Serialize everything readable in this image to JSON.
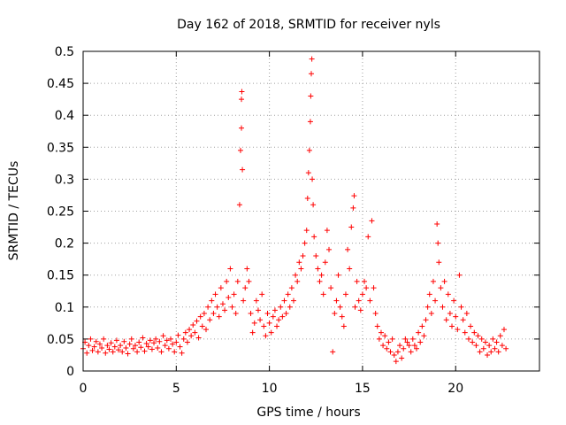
{
  "chart_data": {
    "type": "scatter",
    "title": "Day 162 of 2018, SRMTID for receiver nyls",
    "xlabel": "GPS time / hours",
    "ylabel": "SRMTID / TECUs",
    "xlim": [
      0,
      24.5
    ],
    "ylim": [
      0,
      0.5
    ],
    "x_ticks": [
      0,
      5,
      10,
      15,
      20
    ],
    "y_ticks": [
      0,
      0.05,
      0.1,
      0.15,
      0.2,
      0.25,
      0.3,
      0.35,
      0.4,
      0.45,
      0.5
    ],
    "x_tick_labels": [
      "0",
      "5",
      "10",
      "15",
      "20"
    ],
    "y_tick_labels": [
      "0",
      "0.05",
      "0.1",
      "0.15",
      "0.2",
      "0.25",
      "0.3",
      "0.35",
      "0.4",
      "0.45",
      "0.5"
    ],
    "grid": true,
    "marker": "+",
    "series": [
      {
        "name": "SRMTID",
        "color": "#ff0000",
        "points": [
          [
            0.0,
            0.035
          ],
          [
            0.1,
            0.045
          ],
          [
            0.2,
            0.028
          ],
          [
            0.3,
            0.04
          ],
          [
            0.4,
            0.05
          ],
          [
            0.5,
            0.032
          ],
          [
            0.6,
            0.038
          ],
          [
            0.7,
            0.046
          ],
          [
            0.8,
            0.03
          ],
          [
            0.9,
            0.042
          ],
          [
            1.0,
            0.036
          ],
          [
            1.1,
            0.05
          ],
          [
            1.2,
            0.028
          ],
          [
            1.3,
            0.04
          ],
          [
            1.4,
            0.034
          ],
          [
            1.5,
            0.044
          ],
          [
            1.6,
            0.03
          ],
          [
            1.7,
            0.038
          ],
          [
            1.8,
            0.048
          ],
          [
            1.9,
            0.033
          ],
          [
            2.0,
            0.04
          ],
          [
            2.1,
            0.03
          ],
          [
            2.2,
            0.046
          ],
          [
            2.3,
            0.036
          ],
          [
            2.4,
            0.027
          ],
          [
            2.5,
            0.042
          ],
          [
            2.6,
            0.05
          ],
          [
            2.7,
            0.035
          ],
          [
            2.8,
            0.04
          ],
          [
            2.9,
            0.03
          ],
          [
            3.0,
            0.045
          ],
          [
            3.1,
            0.037
          ],
          [
            3.2,
            0.052
          ],
          [
            3.3,
            0.031
          ],
          [
            3.4,
            0.043
          ],
          [
            3.5,
            0.038
          ],
          [
            3.6,
            0.048
          ],
          [
            3.7,
            0.034
          ],
          [
            3.8,
            0.044
          ],
          [
            3.9,
            0.05
          ],
          [
            4.0,
            0.036
          ],
          [
            4.1,
            0.046
          ],
          [
            4.2,
            0.03
          ],
          [
            4.3,
            0.055
          ],
          [
            4.4,
            0.04
          ],
          [
            4.5,
            0.048
          ],
          [
            4.6,
            0.035
          ],
          [
            4.7,
            0.05
          ],
          [
            4.8,
            0.042
          ],
          [
            4.9,
            0.03
          ],
          [
            5.0,
            0.045
          ],
          [
            5.1,
            0.056
          ],
          [
            5.2,
            0.038
          ],
          [
            5.3,
            0.028
          ],
          [
            5.4,
            0.05
          ],
          [
            5.5,
            0.06
          ],
          [
            5.6,
            0.045
          ],
          [
            5.7,
            0.065
          ],
          [
            5.8,
            0.055
          ],
          [
            5.9,
            0.072
          ],
          [
            6.0,
            0.06
          ],
          [
            6.1,
            0.078
          ],
          [
            6.2,
            0.052
          ],
          [
            6.3,
            0.085
          ],
          [
            6.4,
            0.07
          ],
          [
            6.5,
            0.09
          ],
          [
            6.6,
            0.065
          ],
          [
            6.7,
            0.1
          ],
          [
            6.8,
            0.08
          ],
          [
            6.9,
            0.11
          ],
          [
            7.0,
            0.09
          ],
          [
            7.1,
            0.12
          ],
          [
            7.2,
            0.1
          ],
          [
            7.3,
            0.085
          ],
          [
            7.4,
            0.13
          ],
          [
            7.5,
            0.105
          ],
          [
            7.6,
            0.095
          ],
          [
            7.7,
            0.14
          ],
          [
            7.8,
            0.115
          ],
          [
            7.9,
            0.16
          ],
          [
            8.0,
            0.1
          ],
          [
            8.1,
            0.12
          ],
          [
            8.2,
            0.09
          ],
          [
            8.3,
            0.14
          ],
          [
            8.4,
            0.26
          ],
          [
            8.45,
            0.345
          ],
          [
            8.5,
            0.38
          ],
          [
            8.5,
            0.425
          ],
          [
            8.52,
            0.437
          ],
          [
            8.55,
            0.315
          ],
          [
            8.6,
            0.11
          ],
          [
            8.7,
            0.13
          ],
          [
            8.8,
            0.16
          ],
          [
            8.9,
            0.14
          ],
          [
            9.0,
            0.09
          ],
          [
            9.1,
            0.06
          ],
          [
            9.2,
            0.075
          ],
          [
            9.3,
            0.11
          ],
          [
            9.4,
            0.095
          ],
          [
            9.5,
            0.08
          ],
          [
            9.6,
            0.12
          ],
          [
            9.7,
            0.07
          ],
          [
            9.8,
            0.055
          ],
          [
            9.9,
            0.09
          ],
          [
            10.0,
            0.075
          ],
          [
            10.1,
            0.06
          ],
          [
            10.2,
            0.085
          ],
          [
            10.3,
            0.095
          ],
          [
            10.4,
            0.07
          ],
          [
            10.5,
            0.08
          ],
          [
            10.6,
            0.1
          ],
          [
            10.7,
            0.085
          ],
          [
            10.8,
            0.11
          ],
          [
            10.9,
            0.09
          ],
          [
            11.0,
            0.12
          ],
          [
            11.1,
            0.1
          ],
          [
            11.2,
            0.13
          ],
          [
            11.3,
            0.11
          ],
          [
            11.4,
            0.15
          ],
          [
            11.5,
            0.14
          ],
          [
            11.6,
            0.17
          ],
          [
            11.7,
            0.16
          ],
          [
            11.8,
            0.18
          ],
          [
            11.9,
            0.2
          ],
          [
            12.0,
            0.22
          ],
          [
            12.05,
            0.27
          ],
          [
            12.1,
            0.31
          ],
          [
            12.15,
            0.345
          ],
          [
            12.2,
            0.39
          ],
          [
            12.22,
            0.43
          ],
          [
            12.25,
            0.465
          ],
          [
            12.28,
            0.488
          ],
          [
            12.3,
            0.3
          ],
          [
            12.35,
            0.26
          ],
          [
            12.4,
            0.21
          ],
          [
            12.5,
            0.18
          ],
          [
            12.6,
            0.16
          ],
          [
            12.7,
            0.14
          ],
          [
            12.8,
            0.15
          ],
          [
            12.9,
            0.12
          ],
          [
            13.0,
            0.17
          ],
          [
            13.1,
            0.22
          ],
          [
            13.2,
            0.19
          ],
          [
            13.3,
            0.13
          ],
          [
            13.4,
            0.03
          ],
          [
            13.5,
            0.09
          ],
          [
            13.6,
            0.11
          ],
          [
            13.7,
            0.15
          ],
          [
            13.8,
            0.1
          ],
          [
            13.9,
            0.085
          ],
          [
            14.0,
            0.07
          ],
          [
            14.1,
            0.12
          ],
          [
            14.2,
            0.19
          ],
          [
            14.3,
            0.16
          ],
          [
            14.4,
            0.225
          ],
          [
            14.5,
            0.255
          ],
          [
            14.55,
            0.274
          ],
          [
            14.6,
            0.1
          ],
          [
            14.7,
            0.14
          ],
          [
            14.8,
            0.11
          ],
          [
            14.9,
            0.095
          ],
          [
            15.0,
            0.12
          ],
          [
            15.1,
            0.14
          ],
          [
            15.2,
            0.13
          ],
          [
            15.3,
            0.21
          ],
          [
            15.4,
            0.11
          ],
          [
            15.5,
            0.235
          ],
          [
            15.6,
            0.13
          ],
          [
            15.7,
            0.09
          ],
          [
            15.8,
            0.07
          ],
          [
            15.9,
            0.05
          ],
          [
            16.0,
            0.06
          ],
          [
            16.1,
            0.04
          ],
          [
            16.2,
            0.055
          ],
          [
            16.3,
            0.035
          ],
          [
            16.4,
            0.045
          ],
          [
            16.5,
            0.03
          ],
          [
            16.6,
            0.05
          ],
          [
            16.7,
            0.025
          ],
          [
            16.8,
            0.015
          ],
          [
            16.9,
            0.03
          ],
          [
            17.0,
            0.04
          ],
          [
            17.1,
            0.02
          ],
          [
            17.2,
            0.035
          ],
          [
            17.3,
            0.05
          ],
          [
            17.4,
            0.045
          ],
          [
            17.5,
            0.04
          ],
          [
            17.6,
            0.03
          ],
          [
            17.7,
            0.05
          ],
          [
            17.8,
            0.04
          ],
          [
            17.9,
            0.035
          ],
          [
            18.0,
            0.06
          ],
          [
            18.1,
            0.045
          ],
          [
            18.2,
            0.07
          ],
          [
            18.3,
            0.055
          ],
          [
            18.4,
            0.08
          ],
          [
            18.5,
            0.1
          ],
          [
            18.6,
            0.12
          ],
          [
            18.7,
            0.09
          ],
          [
            18.8,
            0.14
          ],
          [
            18.9,
            0.11
          ],
          [
            19.0,
            0.23
          ],
          [
            19.05,
            0.2
          ],
          [
            19.1,
            0.17
          ],
          [
            19.2,
            0.13
          ],
          [
            19.3,
            0.1
          ],
          [
            19.4,
            0.14
          ],
          [
            19.5,
            0.08
          ],
          [
            19.6,
            0.12
          ],
          [
            19.7,
            0.09
          ],
          [
            19.8,
            0.07
          ],
          [
            19.9,
            0.11
          ],
          [
            20.0,
            0.085
          ],
          [
            20.1,
            0.065
          ],
          [
            20.2,
            0.15
          ],
          [
            20.3,
            0.1
          ],
          [
            20.4,
            0.08
          ],
          [
            20.5,
            0.06
          ],
          [
            20.6,
            0.09
          ],
          [
            20.7,
            0.05
          ],
          [
            20.8,
            0.07
          ],
          [
            20.9,
            0.045
          ],
          [
            21.0,
            0.06
          ],
          [
            21.1,
            0.04
          ],
          [
            21.2,
            0.055
          ],
          [
            21.3,
            0.03
          ],
          [
            21.4,
            0.05
          ],
          [
            21.5,
            0.035
          ],
          [
            21.6,
            0.045
          ],
          [
            21.7,
            0.025
          ],
          [
            21.8,
            0.04
          ],
          [
            21.9,
            0.03
          ],
          [
            22.0,
            0.05
          ],
          [
            22.1,
            0.035
          ],
          [
            22.2,
            0.045
          ],
          [
            22.3,
            0.03
          ],
          [
            22.4,
            0.055
          ],
          [
            22.5,
            0.04
          ],
          [
            22.6,
            0.065
          ],
          [
            22.7,
            0.035
          ]
        ]
      }
    ]
  }
}
